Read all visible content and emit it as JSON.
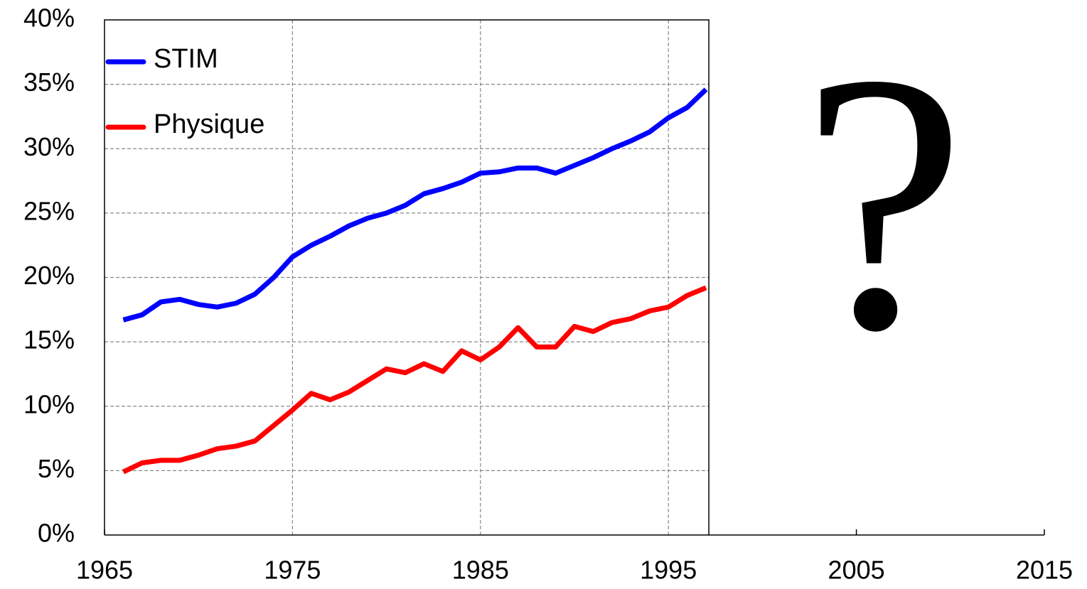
{
  "chart_data": {
    "type": "line",
    "x": [
      1966,
      1967,
      1968,
      1969,
      1970,
      1971,
      1972,
      1973,
      1974,
      1975,
      1976,
      1977,
      1978,
      1979,
      1980,
      1981,
      1982,
      1983,
      1984,
      1985,
      1986,
      1987,
      1988,
      1989,
      1990,
      1991,
      1992,
      1993,
      1994,
      1995,
      1996,
      1997
    ],
    "series": [
      {
        "name": "STIM",
        "color": "#0000ff",
        "values": [
          16.7,
          17.1,
          18.1,
          18.3,
          17.9,
          17.7,
          18.0,
          18.7,
          20.0,
          21.6,
          22.5,
          23.2,
          24.0,
          24.6,
          25.0,
          25.6,
          26.5,
          26.9,
          27.4,
          28.1,
          28.2,
          28.5,
          28.5,
          28.1,
          28.7,
          29.3,
          30.0,
          30.6,
          31.3,
          32.4,
          33.2,
          34.6
        ]
      },
      {
        "name": "Physique",
        "color": "#ff0000",
        "values": [
          4.9,
          5.6,
          5.8,
          5.8,
          6.2,
          6.7,
          6.9,
          7.3,
          8.5,
          9.7,
          11.0,
          10.5,
          11.1,
          12.0,
          12.9,
          12.6,
          13.3,
          12.7,
          14.3,
          13.6,
          14.6,
          16.1,
          14.6,
          14.6,
          16.2,
          15.8,
          16.5,
          16.8,
          17.4,
          17.7,
          18.6,
          19.2
        ]
      }
    ],
    "xlim": [
      1965,
      2015
    ],
    "xticks": [
      1965,
      1975,
      1985,
      1995,
      2005,
      2015
    ],
    "ylim": [
      0,
      40
    ],
    "yticks": [
      {
        "value": 0,
        "label": "0%"
      },
      {
        "value": 5,
        "label": "5%"
      },
      {
        "value": 10,
        "label": "10%"
      },
      {
        "value": 15,
        "label": "15%"
      },
      {
        "value": 20,
        "label": "20%"
      },
      {
        "value": 25,
        "label": "25%"
      },
      {
        "value": 30,
        "label": "30%"
      },
      {
        "value": 35,
        "label": "35%"
      },
      {
        "value": 40,
        "label": "40%"
      }
    ],
    "grid": true,
    "legend": "upper left",
    "annotation": "?"
  }
}
